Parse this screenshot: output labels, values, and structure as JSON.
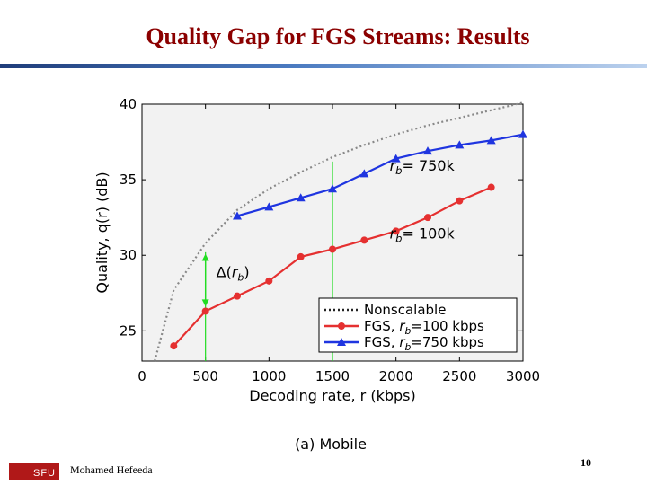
{
  "slide": {
    "title": "Quality Gap for FGS Streams: Results",
    "author": "Mohamed Hefeeda",
    "page_number": "10",
    "logo_text": "SFU"
  },
  "colors": {
    "title": "#8b0000",
    "fgs100": "#e53030",
    "fgs750": "#1f35e0",
    "nonscalable": "#888888",
    "marker_line": "#22dd22",
    "axis_bg": "#f2f2f2"
  },
  "chart_data": {
    "type": "line",
    "ylabel": "Quality, q(r) (dB)",
    "xlabel": "Decoding rate, r (kbps)",
    "caption": "(a) Mobile",
    "xlim": [
      0,
      3000
    ],
    "ylim": [
      23,
      40
    ],
    "xticks": [
      0,
      500,
      1000,
      1500,
      2000,
      2500,
      3000
    ],
    "yticks": [
      25,
      30,
      35,
      40
    ],
    "series": [
      {
        "name": "Nonscalable",
        "style": "dotted",
        "x": [
          100,
          250,
          500,
          750,
          1000,
          1250,
          1500,
          1750,
          2000,
          2250,
          2500,
          2750,
          3000
        ],
        "values": [
          23.0,
          27.7,
          30.8,
          33.0,
          34.4,
          35.5,
          36.5,
          37.3,
          38.0,
          38.6,
          39.1,
          39.6,
          40.1
        ]
      },
      {
        "name": "FGS, rb=100 kbps",
        "style": "solid",
        "marker": "circle",
        "x": [
          250,
          500,
          750,
          1000,
          1250,
          1500,
          1750,
          2000,
          2250,
          2500,
          2750
        ],
        "values": [
          24.0,
          26.3,
          27.3,
          28.3,
          29.9,
          30.4,
          31.0,
          31.6,
          32.5,
          33.6,
          34.5
        ]
      },
      {
        "name": "FGS, rb=750 kbps",
        "style": "solid",
        "marker": "triangle",
        "x": [
          750,
          1000,
          1250,
          1500,
          1750,
          2000,
          2250,
          2500,
          2750,
          3000
        ],
        "values": [
          32.6,
          33.2,
          33.8,
          34.4,
          35.4,
          36.4,
          36.9,
          37.3,
          37.6,
          38.0
        ]
      }
    ],
    "vlines": [
      {
        "x": 500,
        "ymin": 23,
        "ymax": 30.2
      },
      {
        "x": 1500,
        "ymin": 23,
        "ymax": 36.2
      }
    ],
    "delta_arrow": {
      "x": 500,
      "from": 26.6,
      "to": 30.1,
      "label": "Δ(r_b)"
    },
    "annotations": [
      {
        "text": "r_b= 750k",
        "x": 1950,
        "y": 35.6
      },
      {
        "text": "r_b= 100k",
        "x": 1950,
        "y": 31.1
      }
    ],
    "legend": {
      "position": "lower-right",
      "entries": [
        "Nonscalable",
        "FGS, r_b=100 kbps",
        "FGS, r_b=750 kbps"
      ]
    }
  }
}
